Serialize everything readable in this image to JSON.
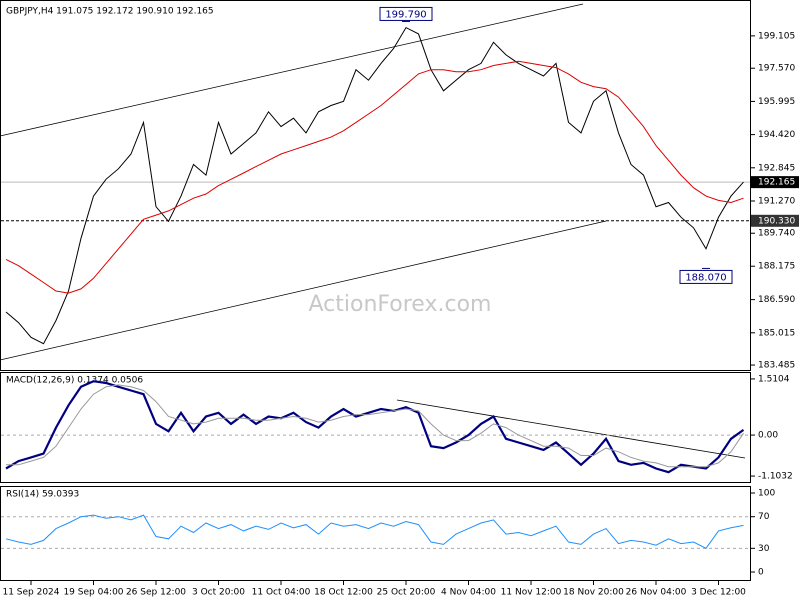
{
  "chart_data": [
    {
      "type": "line",
      "title": "GBPJPY,H4  191.075 192.172 190.910 192.165",
      "watermark": "ActionForex.com",
      "ylim": [
        183.25,
        200.76
      ],
      "yticks": [
        183.485,
        185.015,
        {
          "value": 186.59,
          "label": "186.590"
        },
        188.175,
        {
          "value": 189.74,
          "label": "189.740"
        },
        {
          "value": 191.27,
          "label": "191.270"
        },
        192.845,
        {
          "value": 194.42,
          "label": "194.420"
        },
        195.995,
        {
          "value": 197.57,
          "label": "197.570"
        },
        199.105
      ],
      "last_price": 192.165,
      "level": {
        "value": 190.33,
        "label": "190.330"
      },
      "annotations": [
        {
          "value": 199.79,
          "label": "199.790"
        },
        {
          "value": 188.07,
          "label": "188.070"
        }
      ],
      "series": [
        {
          "name": "Close",
          "color": "#000000",
          "values": [
            186.0,
            185.5,
            184.8,
            184.5,
            185.6,
            187.0,
            189.5,
            191.5,
            192.3,
            192.8,
            193.5,
            195.0,
            191.0,
            190.3,
            191.5,
            193.0,
            192.5,
            195.0,
            193.5,
            194.0,
            194.5,
            195.5,
            194.8,
            195.2,
            194.5,
            195.5,
            195.8,
            196.0,
            197.5,
            197.0,
            197.8,
            198.5,
            199.5,
            199.2,
            197.5,
            196.5,
            197.0,
            197.5,
            197.8,
            198.8,
            198.2,
            197.8,
            197.5,
            197.2,
            197.8,
            195.0,
            194.5,
            196.0,
            196.5,
            194.5,
            193.0,
            192.5,
            191.0,
            191.2,
            190.5,
            190.0,
            189.0,
            190.5,
            191.5,
            192.165
          ]
        },
        {
          "name": "MA",
          "color": "#dd0000",
          "values": [
            188.5,
            188.2,
            187.8,
            187.4,
            187.0,
            186.9,
            187.1,
            187.6,
            188.3,
            189.0,
            189.7,
            190.4,
            190.6,
            190.8,
            191.1,
            191.4,
            191.6,
            192.0,
            192.3,
            192.6,
            192.9,
            193.2,
            193.5,
            193.7,
            193.9,
            194.1,
            194.3,
            194.6,
            195.0,
            195.4,
            195.8,
            196.3,
            196.8,
            197.3,
            197.5,
            197.5,
            197.4,
            197.4,
            197.5,
            197.7,
            197.8,
            197.9,
            197.8,
            197.7,
            197.6,
            197.3,
            196.9,
            196.7,
            196.6,
            196.2,
            195.5,
            194.8,
            193.9,
            193.2,
            192.5,
            191.9,
            191.5,
            191.3,
            191.2,
            191.4
          ]
        }
      ]
    },
    {
      "type": "line",
      "title": "MACD(12,26,9) 0.1374 0.0506",
      "ylim": [
        -1.263,
        1.67
      ],
      "yticks": [
        1.5104,
        {
          "value": 0,
          "label": "0.00"
        },
        -1.1032
      ],
      "series": [
        {
          "name": "MACD",
          "color": "#000080",
          "values": [
            -0.9,
            -0.7,
            -0.6,
            -0.5,
            0.2,
            0.8,
            1.3,
            1.45,
            1.4,
            1.3,
            1.2,
            1.1,
            0.3,
            0.1,
            0.6,
            0.1,
            0.5,
            0.6,
            0.3,
            0.55,
            0.3,
            0.5,
            0.45,
            0.6,
            0.35,
            0.2,
            0.5,
            0.7,
            0.5,
            0.6,
            0.7,
            0.65,
            0.75,
            0.6,
            -0.3,
            -0.35,
            -0.2,
            0.0,
            0.3,
            0.5,
            -0.1,
            -0.2,
            -0.3,
            -0.4,
            -0.2,
            -0.5,
            -0.8,
            -0.5,
            -0.1,
            -0.7,
            -0.8,
            -0.75,
            -0.9,
            -1.0,
            -0.8,
            -0.85,
            -0.9,
            -0.6,
            -0.1,
            0.14
          ]
        },
        {
          "name": "Signal",
          "color": "#999999",
          "values": [
            -0.8,
            -0.8,
            -0.7,
            -0.6,
            -0.3,
            0.2,
            0.7,
            1.1,
            1.3,
            1.35,
            1.3,
            1.2,
            0.9,
            0.5,
            0.4,
            0.3,
            0.35,
            0.45,
            0.45,
            0.45,
            0.4,
            0.4,
            0.45,
            0.5,
            0.45,
            0.35,
            0.4,
            0.5,
            0.55,
            0.55,
            0.6,
            0.65,
            0.7,
            0.65,
            0.3,
            0.0,
            -0.15,
            -0.15,
            0.05,
            0.3,
            0.2,
            0.0,
            -0.15,
            -0.3,
            -0.3,
            -0.35,
            -0.55,
            -0.55,
            -0.35,
            -0.45,
            -0.6,
            -0.7,
            -0.75,
            -0.85,
            -0.85,
            -0.85,
            -0.85,
            -0.75,
            -0.45,
            0.05
          ]
        }
      ]
    },
    {
      "type": "line",
      "title": "RSI(14) 59.0393",
      "ylim": [
        -10.1,
        107.6
      ],
      "yticks": [
        100,
        70,
        30,
        0
      ],
      "levels": [
        70,
        30
      ],
      "categories": [
        null,
        null,
        "11 Sep 2024",
        null,
        null,
        null,
        null,
        "19 Sep 04:00",
        null,
        null,
        null,
        null,
        "26 Sep 12:00",
        null,
        null,
        null,
        null,
        "3 Oct 20:00",
        null,
        null,
        null,
        null,
        "11 Oct 04:00",
        null,
        null,
        null,
        null,
        "18 Oct 12:00",
        null,
        null,
        null,
        null,
        "25 Oct 20:00",
        null,
        null,
        null,
        null,
        "4 Nov 04:00",
        null,
        null,
        null,
        null,
        "11 Nov 12:00",
        null,
        null,
        null,
        null,
        "18 Nov 20:00",
        null,
        null,
        null,
        null,
        "26 Nov 04:00",
        null,
        null,
        null,
        null,
        "3 Dec 12:00",
        null,
        null
      ],
      "series": [
        {
          "name": "RSI",
          "color": "#1e90ff",
          "values": [
            42,
            38,
            35,
            40,
            55,
            62,
            70,
            72,
            68,
            70,
            66,
            72,
            45,
            42,
            58,
            50,
            62,
            55,
            60,
            52,
            58,
            54,
            62,
            56,
            60,
            48,
            62,
            58,
            60,
            55,
            62,
            58,
            64,
            60,
            38,
            35,
            48,
            55,
            62,
            66,
            48,
            50,
            46,
            52,
            58,
            38,
            35,
            48,
            55,
            36,
            40,
            38,
            34,
            42,
            36,
            38,
            30,
            52,
            56,
            59.0393
          ]
        }
      ]
    }
  ]
}
